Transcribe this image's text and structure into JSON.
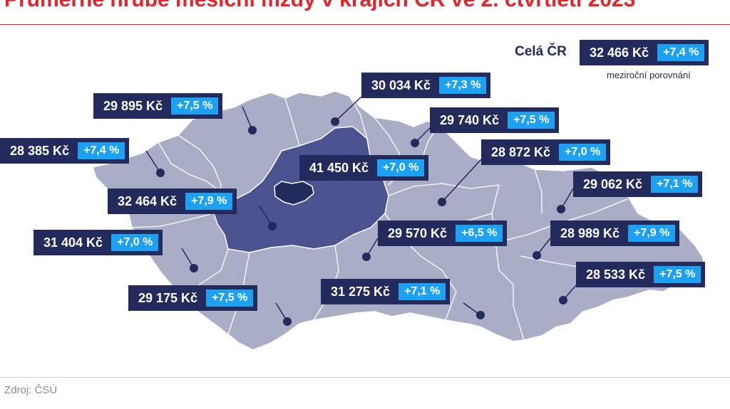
{
  "title": "Průměrné hrubé měsíční mzdy v krajích ČR ve 2. čtvrtletí 2023",
  "total": {
    "label": "Celá ČR",
    "value": "32 466 Kč",
    "change": "+7,4 %",
    "sublabel": "meziroční porovnání"
  },
  "source": "Zdroj: ČSÚ",
  "colors": {
    "title": "#e3242b",
    "box": "#232a5c",
    "badge": "#1da1f2",
    "region": "#a9adc6",
    "central": "#4a5290",
    "prague": "#232a5c",
    "border": "#ffffff"
  },
  "regions": [
    {
      "value": "29 895 Kč",
      "change": "+7,5 %"
    },
    {
      "value": "30 034 Kč",
      "change": "+7,3 %"
    },
    {
      "value": "29 740 Kč",
      "change": "+7,5 %"
    },
    {
      "value": "28 385 Kč",
      "change": "+7,4 %"
    },
    {
      "value": "41 450 Kč",
      "change": "+7,0 %"
    },
    {
      "value": "28 872 Kč",
      "change": "+7,0 %"
    },
    {
      "value": "32 464 Kč",
      "change": "+7,9 %"
    },
    {
      "value": "29 062 Kč",
      "change": "+7,1 %"
    },
    {
      "value": "31 404 Kč",
      "change": "+7,0 %"
    },
    {
      "value": "29 570 Kč",
      "change": "+6,5 %"
    },
    {
      "value": "28 989 Kč",
      "change": "+7,9 %"
    },
    {
      "value": "28 533 Kč",
      "change": "+7,5 %"
    },
    {
      "value": "29 175 Kč",
      "change": "+7,5 %"
    },
    {
      "value": "31 275 Kč",
      "change": "+7,1 %"
    }
  ]
}
